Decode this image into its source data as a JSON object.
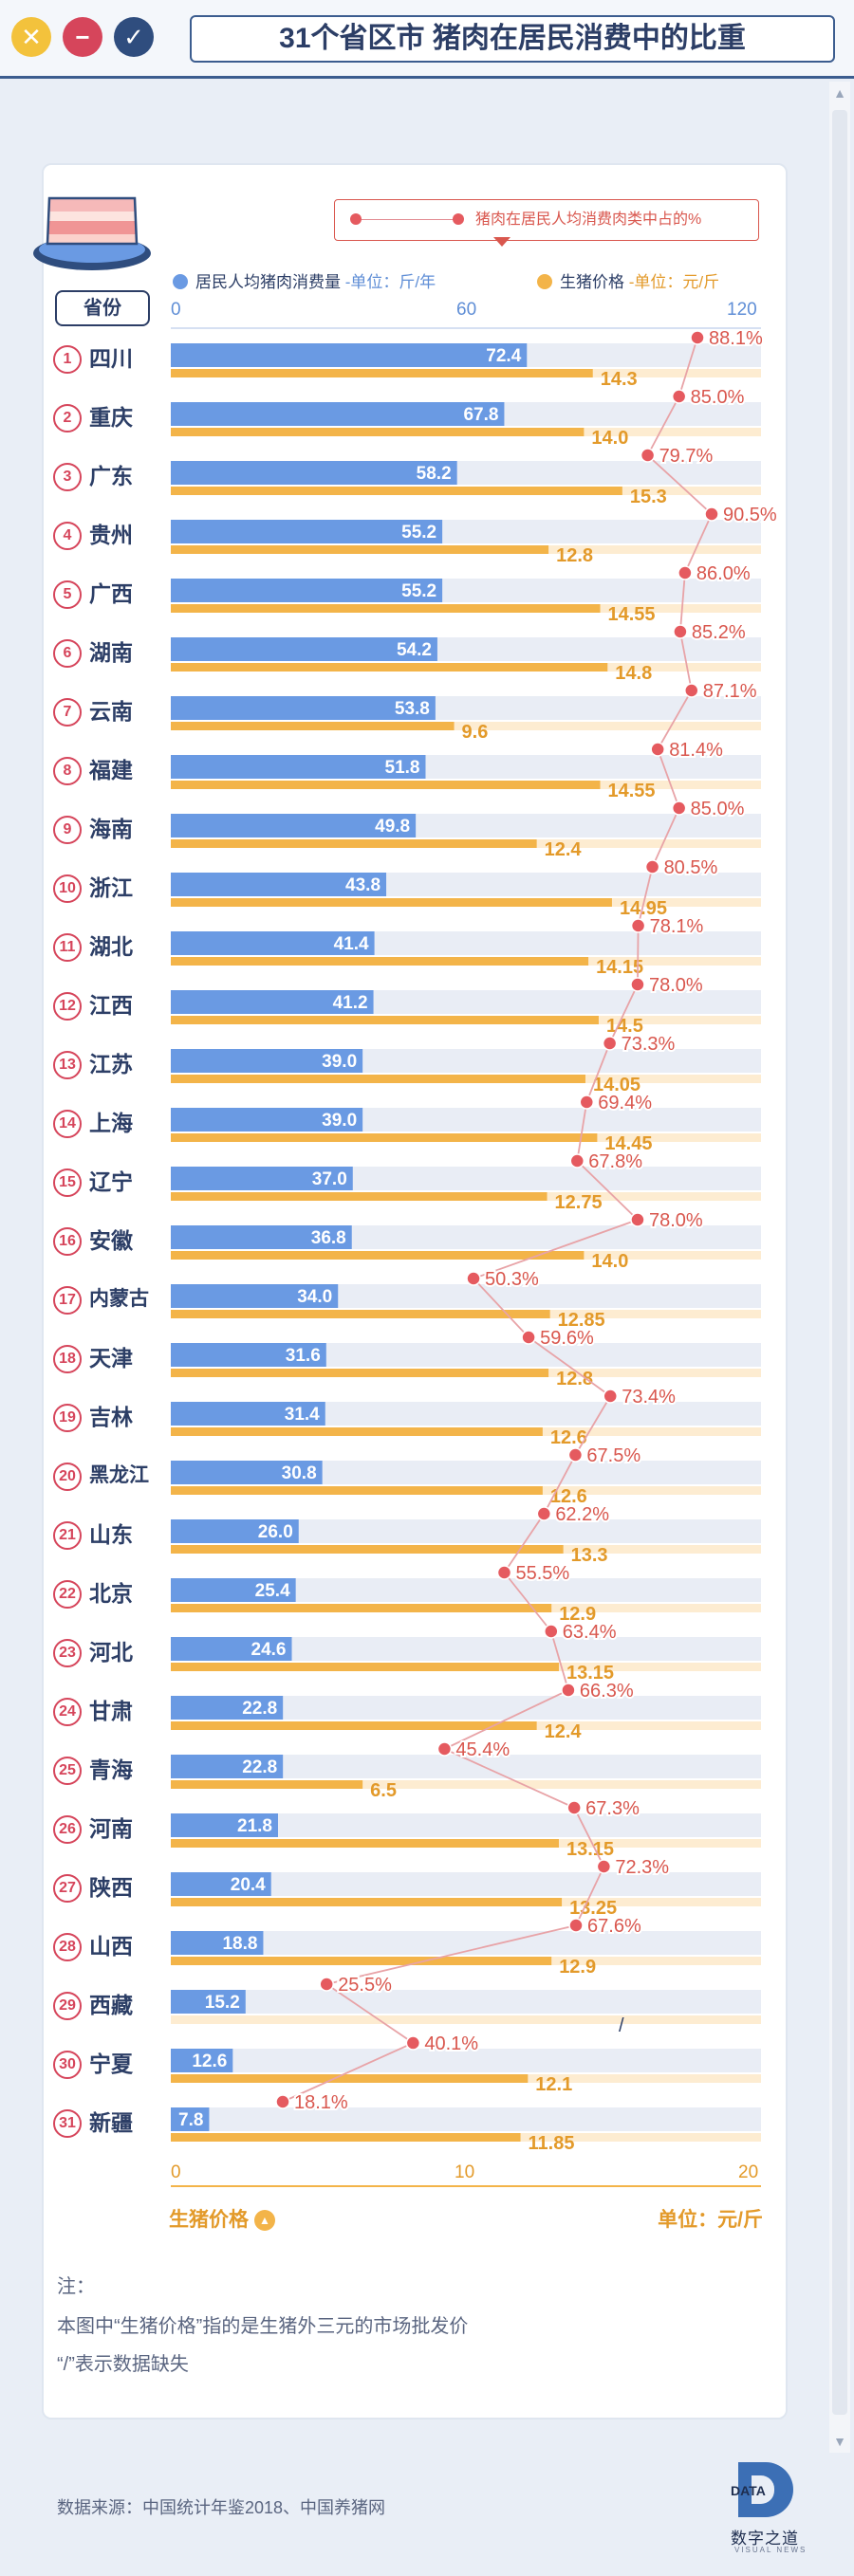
{
  "window": {
    "title": "31个省区市 猪肉在居民消费中的比重",
    "buttons": [
      "close",
      "minimize",
      "confirm"
    ]
  },
  "colors": {
    "consumption_bar": "#6a9ae3",
    "price_bar": "#f3b449",
    "share_line": "#e55a5f",
    "text_dark": "#2c3e66"
  },
  "legend": {
    "share_label": "猪肉在居民人均消费肉类中占的%",
    "consumption_label": "居民人均猪肉消费量",
    "consumption_unit": "-单位：斤/年",
    "price_label": "生猪价格",
    "price_unit": "-单位：元/斤",
    "province_header": "省份"
  },
  "chart_data": {
    "type": "bar",
    "top_axis": {
      "label": "居民人均猪肉消费量",
      "unit": "斤/年",
      "ticks": [
        0,
        60,
        120
      ],
      "range": [
        0,
        120
      ]
    },
    "bottom_axis": {
      "label": "生猪价格",
      "unit": "元/斤",
      "ticks": [
        0,
        10,
        20
      ],
      "range": [
        0,
        20
      ]
    },
    "missing_marker": "/",
    "rows": [
      {
        "rank": 1,
        "province": "四川",
        "consumption": 72.4,
        "consumption_label": "72.4",
        "price": 14.3,
        "price_label": "14.3",
        "share": 88.1,
        "share_label": "88.1%"
      },
      {
        "rank": 2,
        "province": "重庆",
        "consumption": 67.8,
        "consumption_label": "67.8",
        "price": 14.0,
        "price_label": "14.0",
        "share": 85.0,
        "share_label": "85.0%"
      },
      {
        "rank": 3,
        "province": "广东",
        "consumption": 58.2,
        "consumption_label": "58.2",
        "price": 15.3,
        "price_label": "15.3",
        "share": 79.7,
        "share_label": "79.7%"
      },
      {
        "rank": 4,
        "province": "贵州",
        "consumption": 55.2,
        "consumption_label": "55.2",
        "price": 12.8,
        "price_label": "12.8",
        "share": 90.5,
        "share_label": "90.5%"
      },
      {
        "rank": 5,
        "province": "广西",
        "consumption": 55.2,
        "consumption_label": "55.2",
        "price": 14.55,
        "price_label": "14.55",
        "share": 86.0,
        "share_label": "86.0%"
      },
      {
        "rank": 6,
        "province": "湖南",
        "consumption": 54.2,
        "consumption_label": "54.2",
        "price": 14.8,
        "price_label": "14.8",
        "share": 85.2,
        "share_label": "85.2%"
      },
      {
        "rank": 7,
        "province": "云南",
        "consumption": 53.8,
        "consumption_label": "53.8",
        "price": 9.6,
        "price_label": "9.6",
        "share": 87.1,
        "share_label": "87.1%"
      },
      {
        "rank": 8,
        "province": "福建",
        "consumption": 51.8,
        "consumption_label": "51.8",
        "price": 14.55,
        "price_label": "14.55",
        "share": 81.4,
        "share_label": "81.4%"
      },
      {
        "rank": 9,
        "province": "海南",
        "consumption": 49.8,
        "consumption_label": "49.8",
        "price": 12.4,
        "price_label": "12.4",
        "share": 85.0,
        "share_label": "85.0%"
      },
      {
        "rank": 10,
        "province": "浙江",
        "consumption": 43.8,
        "consumption_label": "43.8",
        "price": 14.95,
        "price_label": "14.95",
        "share": 80.5,
        "share_label": "80.5%"
      },
      {
        "rank": 11,
        "province": "湖北",
        "consumption": 41.4,
        "consumption_label": "41.4",
        "price": 14.15,
        "price_label": "14.15",
        "share": 78.1,
        "share_label": "78.1%"
      },
      {
        "rank": 12,
        "province": "江西",
        "consumption": 41.2,
        "consumption_label": "41.2",
        "price": 14.5,
        "price_label": "14.5",
        "share": 78.0,
        "share_label": "78.0%"
      },
      {
        "rank": 13,
        "province": "江苏",
        "consumption": 39.0,
        "consumption_label": "39.0",
        "price": 14.05,
        "price_label": "14.05",
        "share": 73.3,
        "share_label": "73.3%"
      },
      {
        "rank": 14,
        "province": "上海",
        "consumption": 39.0,
        "consumption_label": "39.0",
        "price": 14.45,
        "price_label": "14.45",
        "share": 69.4,
        "share_label": "69.4%"
      },
      {
        "rank": 15,
        "province": "辽宁",
        "consumption": 37.0,
        "consumption_label": "37.0",
        "price": 12.75,
        "price_label": "12.75",
        "share": 67.8,
        "share_label": "67.8%"
      },
      {
        "rank": 16,
        "province": "安徽",
        "consumption": 36.8,
        "consumption_label": "36.8",
        "price": 14.0,
        "price_label": "14.0",
        "share": 78.0,
        "share_label": "78.0%"
      },
      {
        "rank": 17,
        "province": "内蒙古",
        "consumption": 34.0,
        "consumption_label": "34.0",
        "price": 12.85,
        "price_label": "12.85",
        "share": 50.3,
        "share_label": "50.3%"
      },
      {
        "rank": 18,
        "province": "天津",
        "consumption": 31.6,
        "consumption_label": "31.6",
        "price": 12.8,
        "price_label": "12.8",
        "share": 59.6,
        "share_label": "59.6%"
      },
      {
        "rank": 19,
        "province": "吉林",
        "consumption": 31.4,
        "consumption_label": "31.4",
        "price": 12.6,
        "price_label": "12.6",
        "share": 73.4,
        "share_label": "73.4%"
      },
      {
        "rank": 20,
        "province": "黑龙江",
        "consumption": 30.8,
        "consumption_label": "30.8",
        "price": 12.6,
        "price_label": "12.6",
        "share": 67.5,
        "share_label": "67.5%"
      },
      {
        "rank": 21,
        "province": "山东",
        "consumption": 26.0,
        "consumption_label": "26.0",
        "price": 13.3,
        "price_label": "13.3",
        "share": 62.2,
        "share_label": "62.2%"
      },
      {
        "rank": 22,
        "province": "北京",
        "consumption": 25.4,
        "consumption_label": "25.4",
        "price": 12.9,
        "price_label": "12.9",
        "share": 55.5,
        "share_label": "55.5%"
      },
      {
        "rank": 23,
        "province": "河北",
        "consumption": 24.6,
        "consumption_label": "24.6",
        "price": 13.15,
        "price_label": "13.15",
        "share": 63.4,
        "share_label": "63.4%"
      },
      {
        "rank": 24,
        "province": "甘肃",
        "consumption": 22.8,
        "consumption_label": "22.8",
        "price": 12.4,
        "price_label": "12.4",
        "share": 66.3,
        "share_label": "66.3%"
      },
      {
        "rank": 25,
        "province": "青海",
        "consumption": 22.8,
        "consumption_label": "22.8",
        "price": 6.5,
        "price_label": "6.5",
        "share": 45.4,
        "share_label": "45.4%"
      },
      {
        "rank": 26,
        "province": "河南",
        "consumption": 21.8,
        "consumption_label": "21.8",
        "price": 13.15,
        "price_label": "13.15",
        "share": 67.3,
        "share_label": "67.3%"
      },
      {
        "rank": 27,
        "province": "陕西",
        "consumption": 20.4,
        "consumption_label": "20.4",
        "price": 13.25,
        "price_label": "13.25",
        "share": 72.3,
        "share_label": "72.3%"
      },
      {
        "rank": 28,
        "province": "山西",
        "consumption": 18.8,
        "consumption_label": "18.8",
        "price": 12.9,
        "price_label": "12.9",
        "share": 67.6,
        "share_label": "67.6%"
      },
      {
        "rank": 29,
        "province": "西藏",
        "consumption": 15.2,
        "consumption_label": "15.2",
        "price": null,
        "price_label": "/",
        "share": 25.5,
        "share_label": "25.5%"
      },
      {
        "rank": 30,
        "province": "宁夏",
        "consumption": 12.6,
        "consumption_label": "12.6",
        "price": 12.1,
        "price_label": "12.1",
        "share": 40.1,
        "share_label": "40.1%"
      },
      {
        "rank": 31,
        "province": "新疆",
        "consumption": 7.8,
        "consumption_label": "7.8",
        "price": 11.85,
        "price_label": "11.85",
        "share": 18.1,
        "share_label": "18.1%"
      }
    ]
  },
  "footer_axis": {
    "price_label": "生猪价格",
    "unit_label": "单位：元/斤"
  },
  "notes": {
    "heading": "注：",
    "line1": "本图中“生猪价格”指的是生猪外三元的市场批发价",
    "line2": "“/”表示数据缺失"
  },
  "source": "数据来源：中国统计年鉴2018、中国养猪网",
  "logo": {
    "mark": "DATA",
    "name": "数字之道",
    "sub": "VISUAL NEWS"
  }
}
